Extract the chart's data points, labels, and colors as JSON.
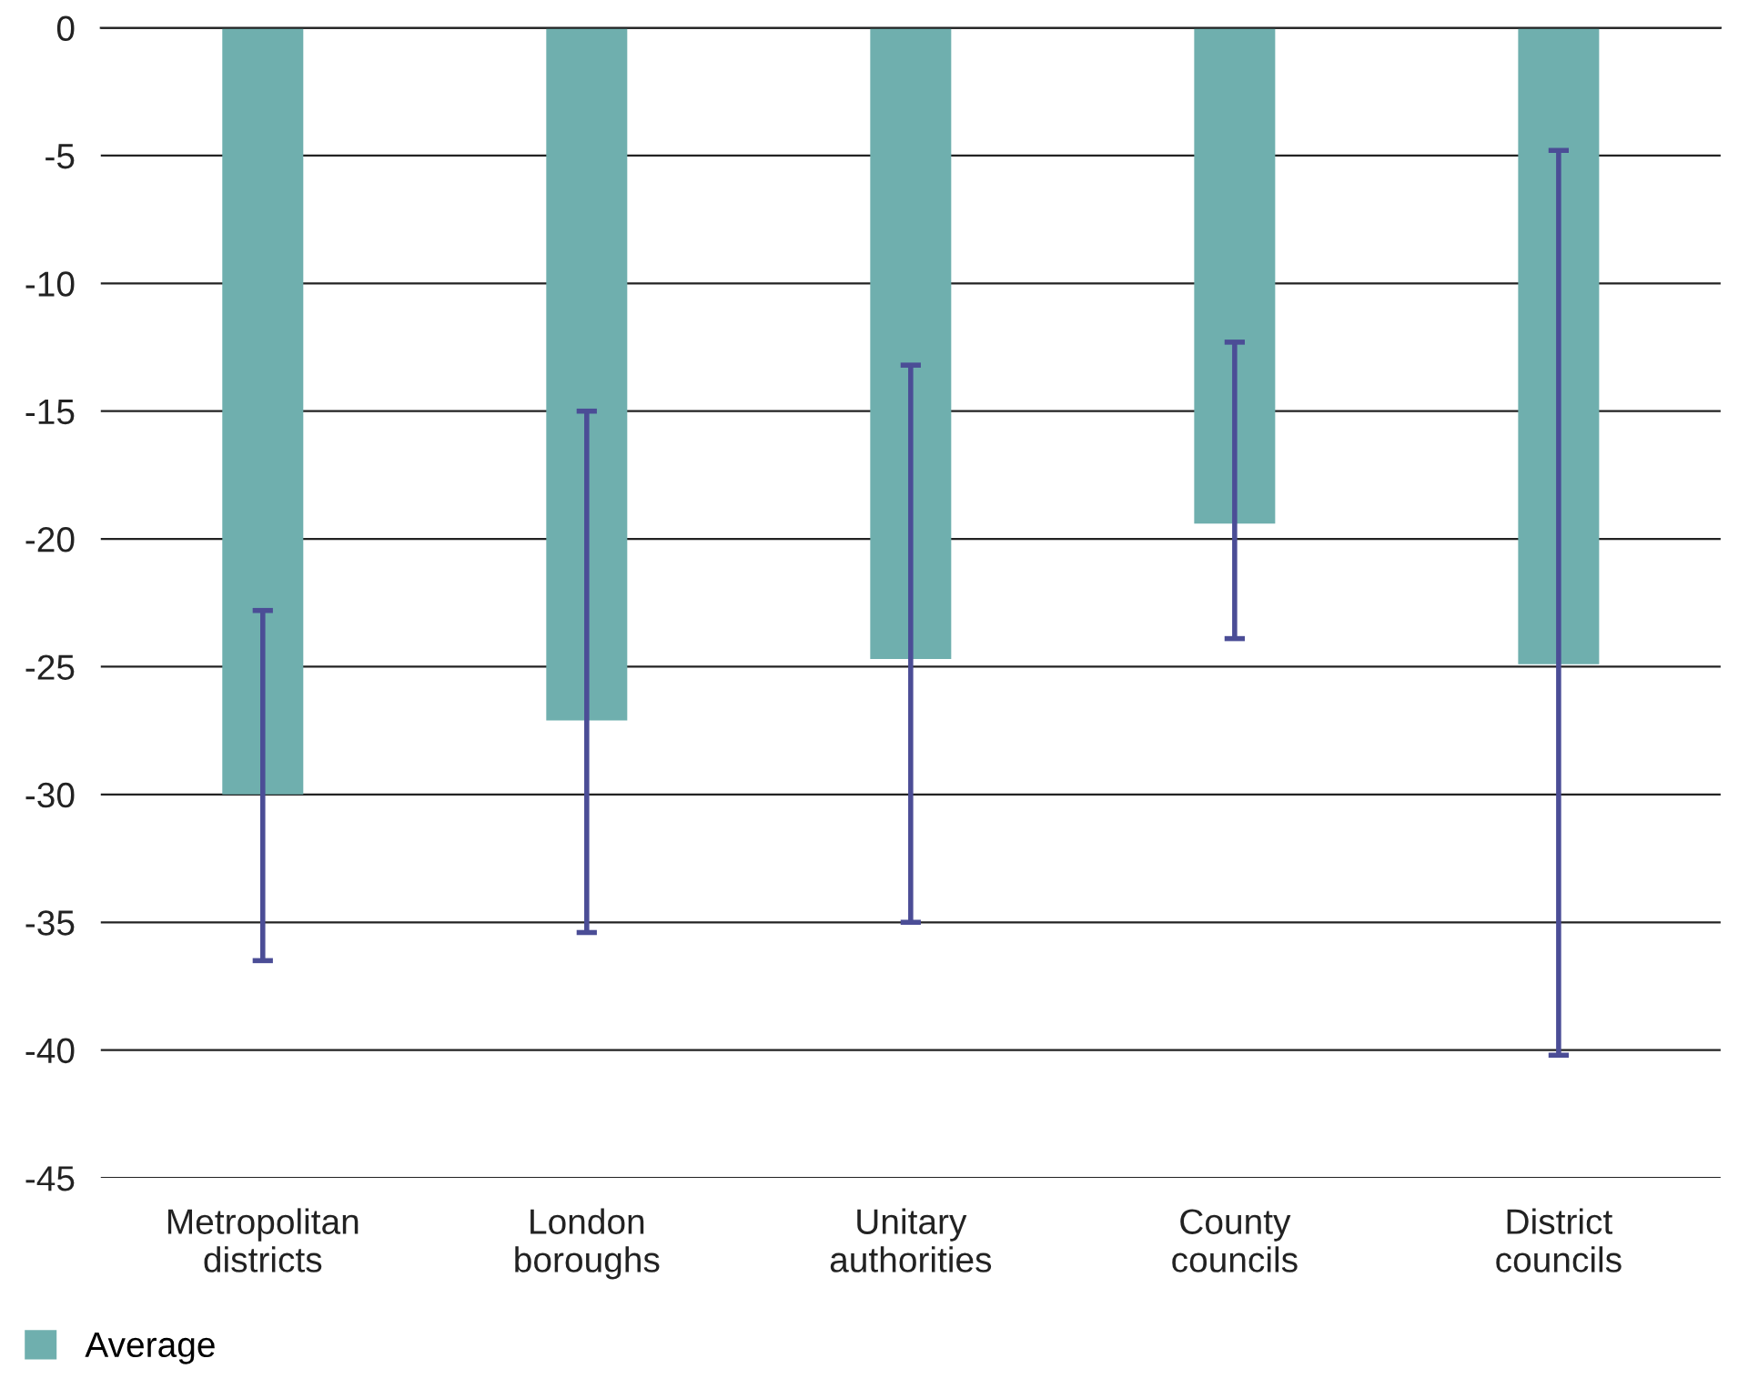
{
  "chart_data": {
    "type": "bar",
    "categories": [
      "Metropolitan\ndistricts",
      "London\nboroughs",
      "Unitary\nauthorities",
      "County\ncouncils",
      "District\ncouncils"
    ],
    "series": [
      {
        "name": "Average",
        "color": "#6fafae",
        "values": [
          -30,
          -27.1,
          -24.7,
          -19.4,
          -24.9
        ],
        "errors": [
          [
            -36.5,
            -22.8
          ],
          [
            -35.4,
            -15.0
          ],
          [
            -35.0,
            -13.2
          ],
          [
            -23.9,
            -12.3
          ],
          [
            -40.2,
            -4.8
          ]
        ]
      }
    ],
    "ylim": [
      -45,
      0
    ],
    "yticks": [
      -45,
      -40,
      -35,
      -30,
      -25,
      -20,
      -15,
      -10,
      -5,
      0
    ],
    "grid": "y",
    "legend": "bottom left"
  }
}
